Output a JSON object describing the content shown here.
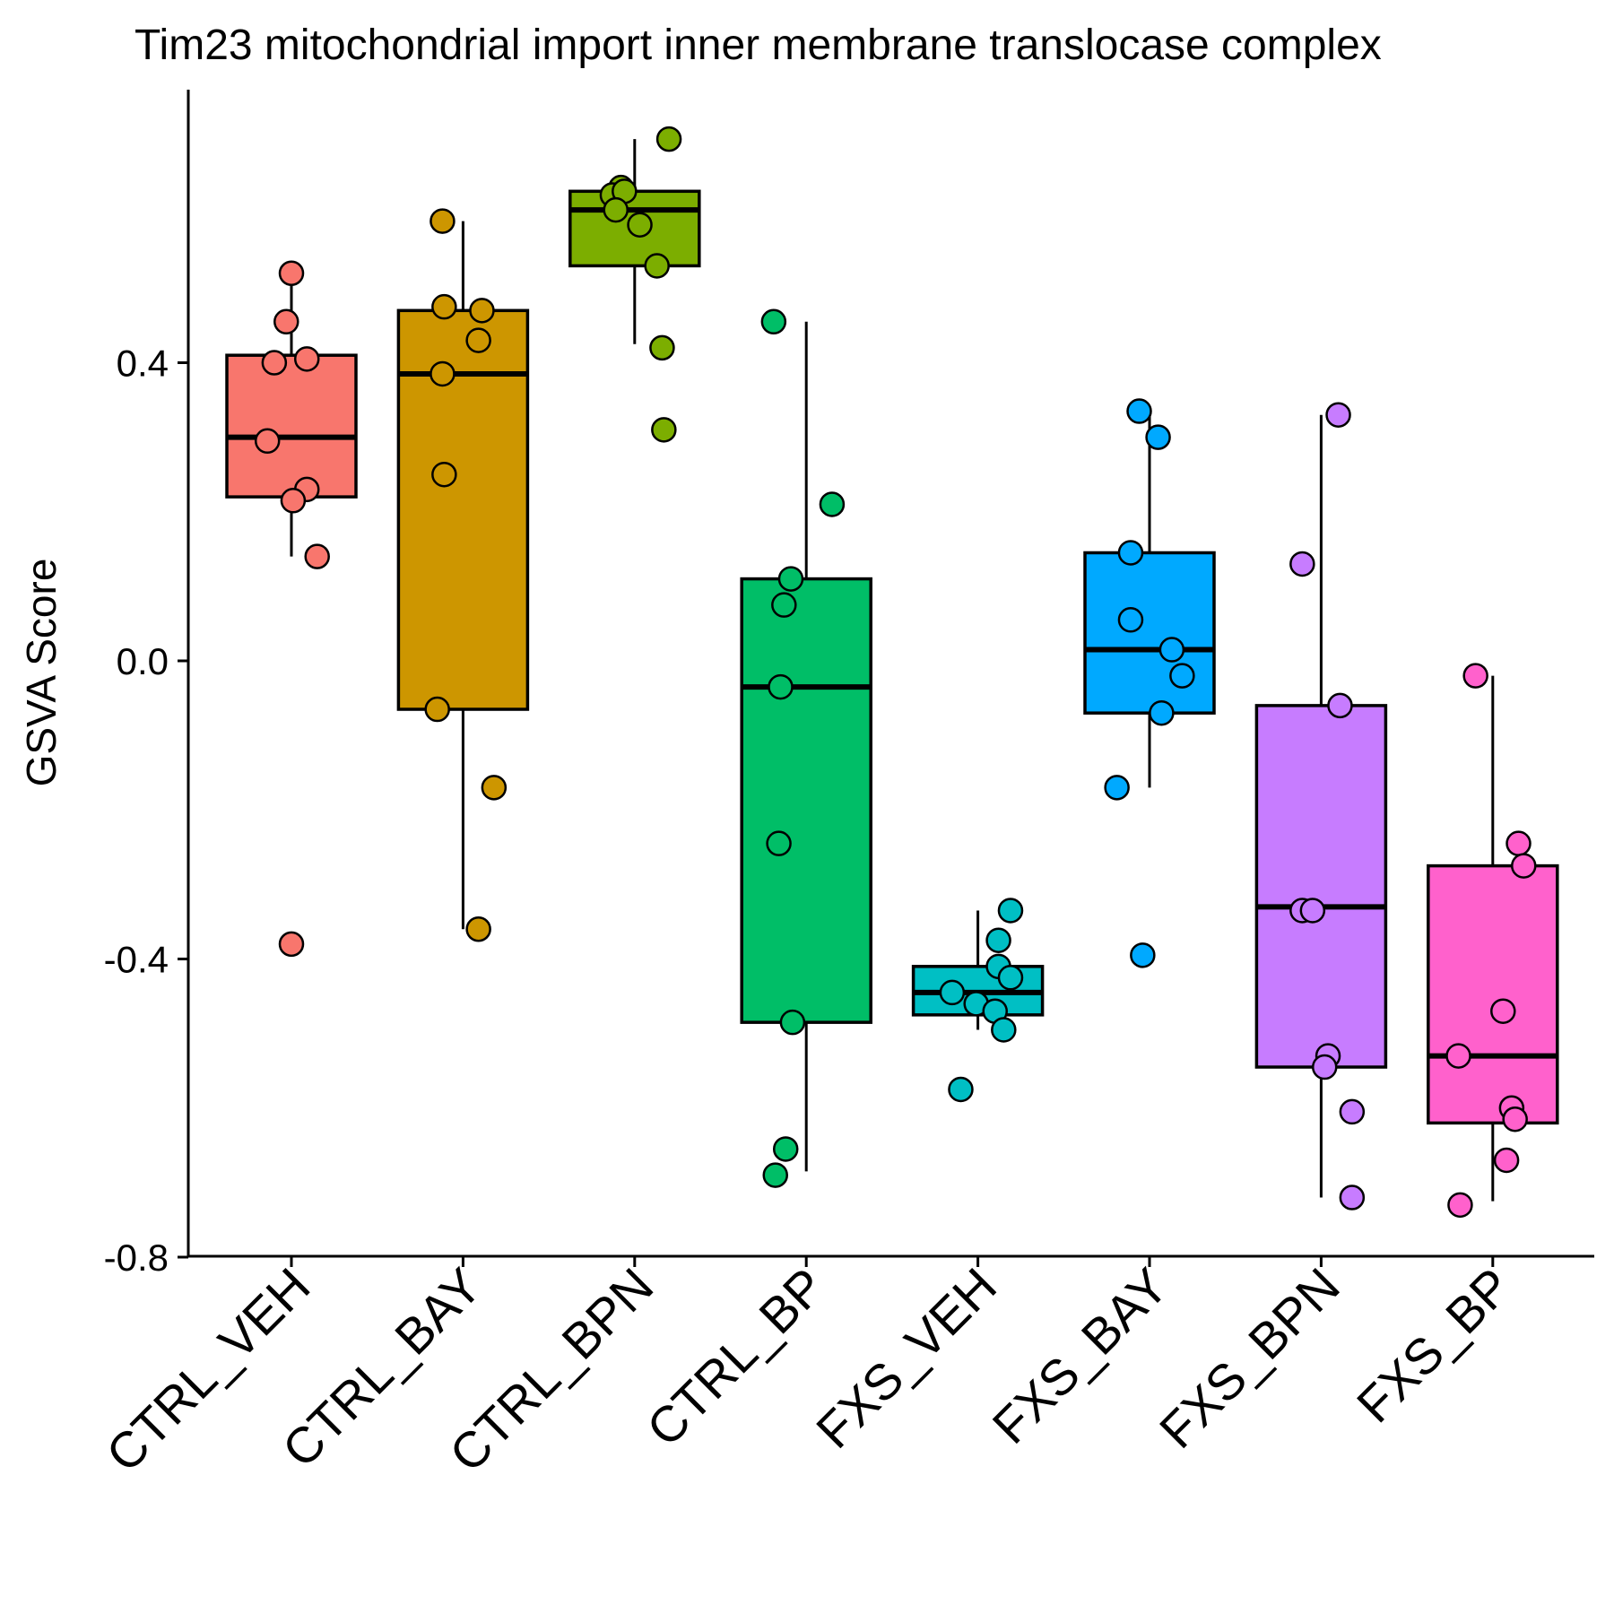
{
  "chart_data": {
    "type": "box",
    "title": "Tim23 mitochondrial import inner membrane translocase complex",
    "xlabel": "",
    "ylabel": "GSVA Score",
    "ylim": [
      -0.8,
      0.8
    ],
    "yticks": [
      {
        "value": -0.8,
        "label": "-0.8"
      },
      {
        "value": -0.4,
        "label": "-0.4"
      },
      {
        "value": 0.0,
        "label": "0.0"
      },
      {
        "value": 0.4,
        "label": "0.4"
      }
    ],
    "grid": false,
    "legend": "none",
    "groups": [
      {
        "name": "CTRL_VEH",
        "color": "#F8766D",
        "box": {
          "min": 0.14,
          "q1": 0.22,
          "median": 0.3,
          "q3": 0.41,
          "max": 0.52
        },
        "points": [
          {
            "x": 1.0,
            "y": 0.52
          },
          {
            "x": 0.97,
            "y": 0.455
          },
          {
            "x": 0.9,
            "y": 0.4
          },
          {
            "x": 1.09,
            "y": 0.405
          },
          {
            "x": 0.86,
            "y": 0.295
          },
          {
            "x": 1.09,
            "y": 0.23
          },
          {
            "x": 1.01,
            "y": 0.215
          },
          {
            "x": 1.15,
            "y": 0.14
          },
          {
            "x": 1.0,
            "y": -0.38
          }
        ]
      },
      {
        "name": "CTRL_BAY",
        "color": "#CD9600",
        "box": {
          "min": -0.36,
          "q1": -0.065,
          "median": 0.385,
          "q3": 0.47,
          "max": 0.59
        },
        "points": [
          {
            "x": 1.88,
            "y": 0.59
          },
          {
            "x": 1.89,
            "y": 0.475
          },
          {
            "x": 2.11,
            "y": 0.47
          },
          {
            "x": 2.09,
            "y": 0.43
          },
          {
            "x": 1.88,
            "y": 0.385
          },
          {
            "x": 1.89,
            "y": 0.25
          },
          {
            "x": 1.85,
            "y": -0.065
          },
          {
            "x": 2.18,
            "y": -0.17
          },
          {
            "x": 2.09,
            "y": -0.36
          }
        ]
      },
      {
        "name": "CTRL_BPN",
        "color": "#7CAE00",
        "box": {
          "min": 0.425,
          "q1": 0.53,
          "median": 0.605,
          "q3": 0.63,
          "max": 0.7
        },
        "points": [
          {
            "x": 3.2,
            "y": 0.7
          },
          {
            "x": 2.92,
            "y": 0.635
          },
          {
            "x": 2.87,
            "y": 0.625
          },
          {
            "x": 2.94,
            "y": 0.63
          },
          {
            "x": 2.89,
            "y": 0.605
          },
          {
            "x": 3.03,
            "y": 0.585
          },
          {
            "x": 3.13,
            "y": 0.53
          },
          {
            "x": 3.16,
            "y": 0.42
          },
          {
            "x": 3.17,
            "y": 0.31
          }
        ]
      },
      {
        "name": "CTRL_BP",
        "color": "#00BE67",
        "box": {
          "min": -0.685,
          "q1": -0.485,
          "median": -0.035,
          "q3": 0.11,
          "max": 0.455
        },
        "points": [
          {
            "x": 3.81,
            "y": 0.455
          },
          {
            "x": 4.15,
            "y": 0.21
          },
          {
            "x": 3.91,
            "y": 0.11
          },
          {
            "x": 3.87,
            "y": 0.075
          },
          {
            "x": 3.85,
            "y": -0.035
          },
          {
            "x": 3.84,
            "y": -0.245
          },
          {
            "x": 3.92,
            "y": -0.485
          },
          {
            "x": 3.88,
            "y": -0.655
          },
          {
            "x": 3.82,
            "y": -0.69
          }
        ]
      },
      {
        "name": "FXS_VEH",
        "color": "#00BFC4",
        "box": {
          "min": -0.495,
          "q1": -0.475,
          "median": -0.445,
          "q3": -0.41,
          "max": -0.335
        },
        "points": [
          {
            "x": 5.19,
            "y": -0.335
          },
          {
            "x": 5.12,
            "y": -0.375
          },
          {
            "x": 5.12,
            "y": -0.41
          },
          {
            "x": 5.19,
            "y": -0.425
          },
          {
            "x": 4.85,
            "y": -0.445
          },
          {
            "x": 4.99,
            "y": -0.46
          },
          {
            "x": 5.1,
            "y": -0.47
          },
          {
            "x": 5.15,
            "y": -0.495
          },
          {
            "x": 4.9,
            "y": -0.575
          }
        ]
      },
      {
        "name": "FXS_BAY",
        "color": "#00A9FF",
        "box": {
          "min": -0.17,
          "q1": -0.07,
          "median": 0.015,
          "q3": 0.145,
          "max": 0.335
        },
        "points": [
          {
            "x": 5.94,
            "y": 0.335
          },
          {
            "x": 6.05,
            "y": 0.3
          },
          {
            "x": 5.89,
            "y": 0.145
          },
          {
            "x": 5.89,
            "y": 0.055
          },
          {
            "x": 6.13,
            "y": 0.015
          },
          {
            "x": 6.19,
            "y": -0.02
          },
          {
            "x": 6.07,
            "y": -0.07
          },
          {
            "x": 5.81,
            "y": -0.17
          },
          {
            "x": 5.96,
            "y": -0.395
          }
        ]
      },
      {
        "name": "FXS_BPN",
        "color": "#C77CFF",
        "box": {
          "min": -0.72,
          "q1": -0.545,
          "median": -0.33,
          "q3": -0.06,
          "max": 0.33
        },
        "points": [
          {
            "x": 7.1,
            "y": 0.33
          },
          {
            "x": 6.89,
            "y": 0.13
          },
          {
            "x": 7.11,
            "y": -0.06
          },
          {
            "x": 6.89,
            "y": -0.335
          },
          {
            "x": 6.95,
            "y": -0.335
          },
          {
            "x": 7.04,
            "y": -0.53
          },
          {
            "x": 7.02,
            "y": -0.545
          },
          {
            "x": 7.18,
            "y": -0.605
          },
          {
            "x": 7.18,
            "y": -0.72
          }
        ]
      },
      {
        "name": "FXS_BP",
        "color": "#FF61CC",
        "box": {
          "min": -0.725,
          "q1": -0.62,
          "median": -0.53,
          "q3": -0.275,
          "max": -0.02
        },
        "points": [
          {
            "x": 7.9,
            "y": -0.02
          },
          {
            "x": 8.15,
            "y": -0.245
          },
          {
            "x": 8.18,
            "y": -0.275
          },
          {
            "x": 8.06,
            "y": -0.47
          },
          {
            "x": 7.8,
            "y": -0.53
          },
          {
            "x": 8.11,
            "y": -0.6
          },
          {
            "x": 8.13,
            "y": -0.615
          },
          {
            "x": 8.08,
            "y": -0.67
          },
          {
            "x": 7.81,
            "y": -0.73
          }
        ]
      }
    ]
  }
}
